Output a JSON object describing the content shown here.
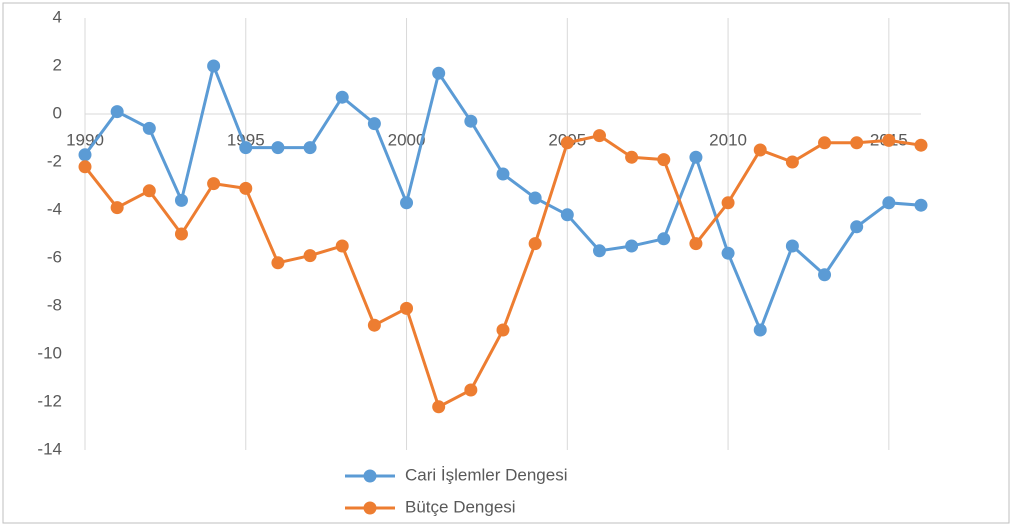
{
  "chart_data": {
    "type": "line",
    "x": [
      1990,
      1991,
      1992,
      1993,
      1994,
      1995,
      1996,
      1997,
      1998,
      1999,
      2000,
      2001,
      2002,
      2003,
      2004,
      2005,
      2006,
      2007,
      2008,
      2009,
      2010,
      2011,
      2012,
      2013,
      2014,
      2015,
      2016
    ],
    "series": [
      {
        "name": "Cari İşlemler Dengesi",
        "color": "#5b9bd5",
        "values": [
          -1.7,
          0.1,
          -0.6,
          -3.6,
          2.0,
          -1.4,
          -1.4,
          -1.4,
          0.7,
          -0.4,
          -3.7,
          1.7,
          -0.3,
          -2.5,
          -3.5,
          -4.2,
          -5.7,
          -5.5,
          -5.2,
          -1.8,
          -5.8,
          -9.0,
          -5.5,
          -6.7,
          -4.7,
          -3.7,
          -3.8
        ]
      },
      {
        "name": "Bütçe Dengesi",
        "color": "#ed7d31",
        "values": [
          -2.2,
          -3.9,
          -3.2,
          -5.0,
          -2.9,
          -3.1,
          -6.2,
          -5.9,
          -5.5,
          -8.8,
          -8.1,
          -12.2,
          -11.5,
          -9.0,
          -5.4,
          -1.2,
          -0.9,
          -1.8,
          -1.9,
          -5.4,
          -3.7,
          -1.5,
          -2.0,
          -1.2,
          -1.2,
          -1.1,
          -1.3
        ]
      }
    ],
    "xlim": [
      1990,
      2016
    ],
    "xticks": [
      1990,
      1995,
      2000,
      2005,
      2010,
      2015
    ],
    "ylim": [
      -14,
      4
    ],
    "yticks": [
      -14,
      -12,
      -10,
      -8,
      -6,
      -4,
      -2,
      0,
      2,
      4
    ],
    "grid": "x",
    "legend": "bottom"
  }
}
